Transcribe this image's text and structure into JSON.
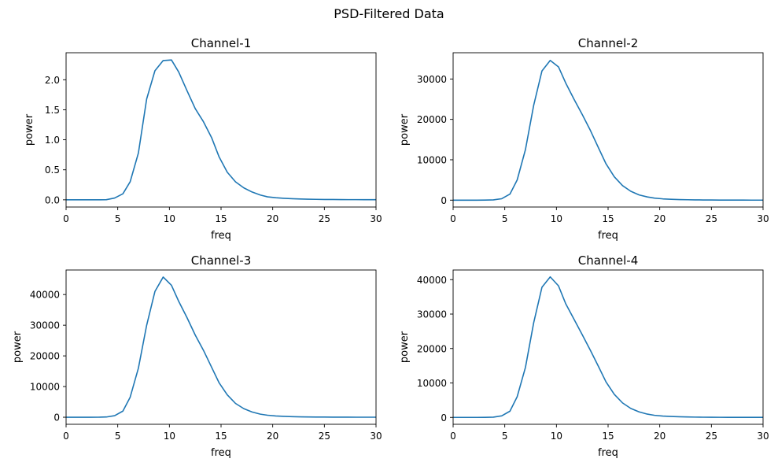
{
  "figure": {
    "suptitle": "PSD-Filtered Data"
  },
  "chart_data": [
    {
      "type": "line",
      "title": "Channel-1",
      "xlabel": "freq",
      "ylabel": "power",
      "xlim": [
        0,
        30
      ],
      "ylim": [
        -0.12,
        2.45
      ],
      "xticks": [
        0,
        5,
        10,
        15,
        20,
        25,
        30
      ],
      "yticks": [
        0.0,
        0.5,
        1.0,
        1.5,
        2.0
      ],
      "ytick_labels": [
        "0.0",
        "0.5",
        "1.0",
        "1.5",
        "2.0"
      ],
      "grid": false,
      "color": "#1f77b4",
      "x": [
        0,
        0.8,
        1.6,
        2.3,
        3.1,
        3.9,
        4.7,
        5.5,
        6.2,
        7.0,
        7.8,
        8.6,
        9.4,
        10.2,
        10.9,
        11.7,
        12.5,
        13.3,
        14.1,
        14.8,
        15.6,
        16.4,
        17.2,
        18.0,
        18.8,
        19.5,
        20.3,
        21.1,
        21.9,
        22.7,
        23.4,
        24.2,
        25.0,
        25.8,
        26.6,
        27.3,
        28.1,
        28.9,
        29.7,
        30
      ],
      "y": [
        0.0,
        0.0,
        0.0,
        0.0,
        0.0,
        0.002,
        0.03,
        0.1,
        0.3,
        0.78,
        1.68,
        2.15,
        2.32,
        2.33,
        2.13,
        1.82,
        1.52,
        1.3,
        1.03,
        0.72,
        0.46,
        0.3,
        0.2,
        0.13,
        0.08,
        0.05,
        0.035,
        0.025,
        0.018,
        0.013,
        0.01,
        0.008,
        0.006,
        0.005,
        0.004,
        0.003,
        0.003,
        0.002,
        0.002,
        0.002
      ]
    },
    {
      "type": "line",
      "title": "Channel-2",
      "xlabel": "freq",
      "ylabel": "power",
      "xlim": [
        0,
        30
      ],
      "ylim": [
        -1700,
        36500
      ],
      "xticks": [
        0,
        5,
        10,
        15,
        20,
        25,
        30
      ],
      "yticks": [
        0,
        10000,
        20000,
        30000
      ],
      "ytick_labels": [
        "0",
        "10000",
        "20000",
        "30000"
      ],
      "grid": false,
      "color": "#1f77b4",
      "x": [
        0,
        0.8,
        1.6,
        2.3,
        3.1,
        3.9,
        4.7,
        5.5,
        6.2,
        7.0,
        7.8,
        8.6,
        9.4,
        10.2,
        10.9,
        11.7,
        12.5,
        13.3,
        14.1,
        14.8,
        15.6,
        16.4,
        17.2,
        18.0,
        18.8,
        19.5,
        20.3,
        21.1,
        21.9,
        22.7,
        23.4,
        24.2,
        25.0,
        25.8,
        26.6,
        27.3,
        28.1,
        28.9,
        29.7,
        30
      ],
      "y": [
        0,
        0,
        0,
        0,
        10,
        60,
        350,
        1500,
        5000,
        12500,
        23500,
        32000,
        34600,
        33000,
        29000,
        25000,
        21200,
        17200,
        12800,
        9000,
        5800,
        3600,
        2200,
        1300,
        800,
        500,
        320,
        210,
        140,
        100,
        70,
        50,
        35,
        25,
        20,
        15,
        10,
        8,
        6,
        5
      ]
    },
    {
      "type": "line",
      "title": "Channel-3",
      "xlabel": "freq",
      "ylabel": "power",
      "xlim": [
        0,
        30
      ],
      "ylim": [
        -2300,
        48000
      ],
      "xticks": [
        0,
        5,
        10,
        15,
        20,
        25,
        30
      ],
      "yticks": [
        0,
        10000,
        20000,
        30000,
        40000
      ],
      "ytick_labels": [
        "0",
        "10000",
        "20000",
        "30000",
        "40000"
      ],
      "grid": false,
      "color": "#1f77b4",
      "x": [
        0,
        0.8,
        1.6,
        2.3,
        3.1,
        3.9,
        4.7,
        5.5,
        6.2,
        7.0,
        7.8,
        8.6,
        9.4,
        10.2,
        10.9,
        11.7,
        12.5,
        13.3,
        14.1,
        14.8,
        15.6,
        16.4,
        17.2,
        18.0,
        18.8,
        19.5,
        20.3,
        21.1,
        21.9,
        22.7,
        23.4,
        24.2,
        25.0,
        25.8,
        26.6,
        27.3,
        28.1,
        28.9,
        29.7,
        30
      ],
      "y": [
        0,
        0,
        0,
        0,
        10,
        80,
        500,
        2000,
        6500,
        16000,
        30000,
        41000,
        45700,
        43000,
        37800,
        32500,
        26800,
        21800,
        16200,
        11300,
        7300,
        4500,
        2800,
        1700,
        1000,
        650,
        420,
        280,
        190,
        130,
        90,
        65,
        45,
        33,
        25,
        18,
        13,
        10,
        8,
        6
      ]
    },
    {
      "type": "line",
      "title": "Channel-4",
      "xlabel": "freq",
      "ylabel": "power",
      "xlim": [
        0,
        30
      ],
      "ylim": [
        -2000,
        42800
      ],
      "xticks": [
        0,
        5,
        10,
        15,
        20,
        25,
        30
      ],
      "yticks": [
        0,
        10000,
        20000,
        30000,
        40000
      ],
      "ytick_labels": [
        "0",
        "10000",
        "20000",
        "30000",
        "40000"
      ],
      "grid": false,
      "color": "#1f77b4",
      "x": [
        0,
        0.8,
        1.6,
        2.3,
        3.1,
        3.9,
        4.7,
        5.5,
        6.2,
        7.0,
        7.8,
        8.6,
        9.4,
        10.2,
        10.9,
        11.7,
        12.5,
        13.3,
        14.1,
        14.8,
        15.6,
        16.4,
        17.2,
        18.0,
        18.8,
        19.5,
        20.3,
        21.1,
        21.9,
        22.7,
        23.4,
        24.2,
        25.0,
        25.8,
        26.6,
        27.3,
        28.1,
        28.9,
        29.7,
        30
      ],
      "y": [
        0,
        0,
        0,
        0,
        10,
        70,
        450,
        1800,
        6000,
        14500,
        27500,
        37800,
        40800,
        38200,
        33000,
        28500,
        24000,
        19400,
        14600,
        10300,
        6700,
        4200,
        2600,
        1600,
        950,
        600,
        390,
        260,
        175,
        120,
        85,
        60,
        42,
        30,
        22,
        16,
        12,
        9,
        7,
        5
      ]
    }
  ]
}
